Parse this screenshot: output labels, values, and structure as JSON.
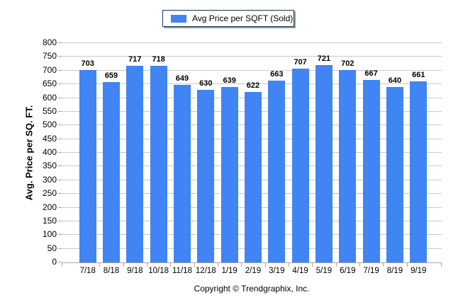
{
  "chart_data": {
    "type": "bar",
    "title": "",
    "series_label": "Avg Price per SQFT (Sold)",
    "categories": [
      "7/18",
      "8/18",
      "9/18",
      "10/18",
      "11/18",
      "12/18",
      "1/19",
      "2/19",
      "3/19",
      "4/19",
      "5/19",
      "6/19",
      "7/19",
      "8/19",
      "9/19"
    ],
    "values": [
      703,
      659,
      717,
      718,
      649,
      630,
      639,
      622,
      663,
      707,
      721,
      702,
      667,
      640,
      661
    ],
    "xlabel": "",
    "ylabel": "Avg. Price per SQ. FT.",
    "ylim": [
      0,
      800
    ],
    "ytick_step": 50,
    "grid": true,
    "legend_position": "top-center",
    "bar_color": "#4184F3",
    "gridline_color": "#c9c9c9",
    "axis_color": "#a6a6a6",
    "legend_border_color": "#17375E",
    "footer": "Copyright © Trendgraphix, Inc."
  }
}
